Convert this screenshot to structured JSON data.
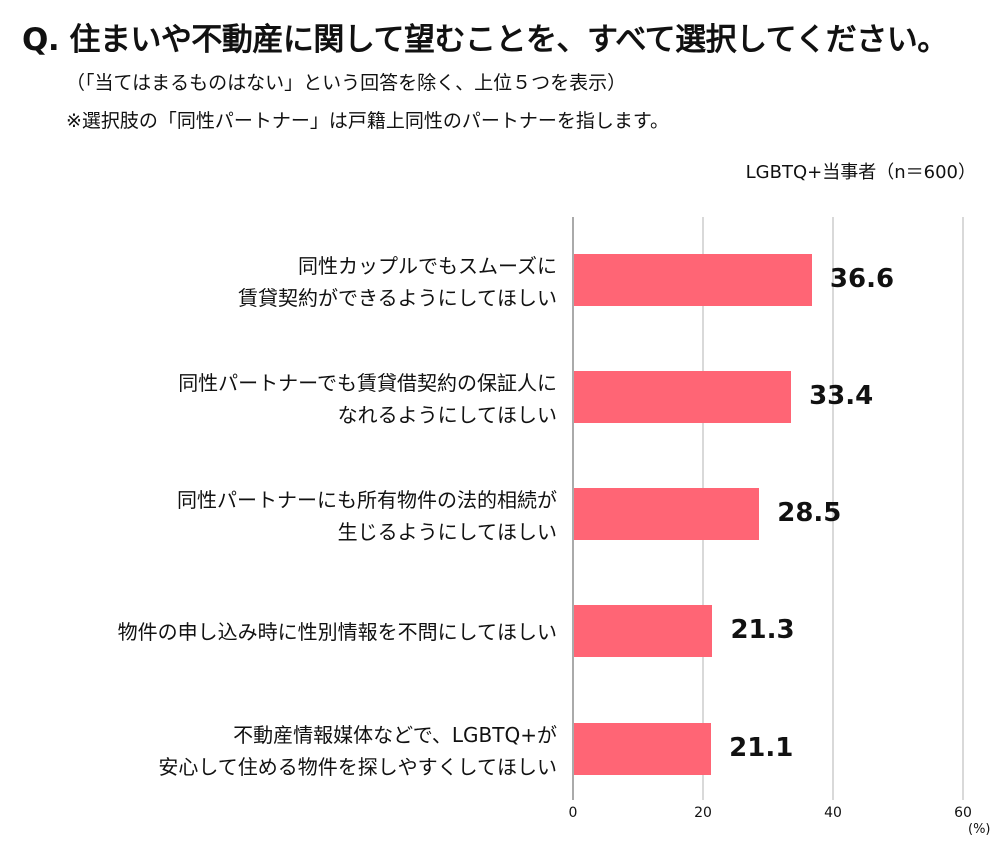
{
  "header": {
    "title": "Q. 住まいや不動産に関して望むことを、すべて選択してください。",
    "note1": "（「当てはまるものはない」という回答を除く、上位５つを表示）",
    "note2": "※選択肢の「同性パートナー」は戸籍上同性のパートナーを指します。",
    "sample": "LGBTQ+当事者（n＝600）"
  },
  "colors": {
    "bar": "#ff6575",
    "grid": "#d9d9d9",
    "axis": "#aaaaaa",
    "text": "#111111"
  },
  "chart_data": {
    "type": "bar",
    "orientation": "horizontal",
    "title": "Q. 住まいや不動産に関して望むことを、すべて選択してください。",
    "subtitle": "LGBTQ+当事者（n＝600）",
    "categories": [
      "同性カップルでもスムーズに賃貸契約ができるようにしてほしい",
      "同性パートナーでも賃貸借契約の保証人になれるようにしてほしい",
      "同性パートナーにも所有物件の法的相続が生じるようにしてほしい",
      "物件の申し込み時に性別情報を不問にしてほしい",
      "不動産情報媒体などで、LGBTQ+が安心して住める物件を探しやすくしてほしい"
    ],
    "values": [
      36.6,
      33.4,
      28.5,
      21.3,
      21.1
    ],
    "xlabel": "(%)",
    "ylabel": "",
    "xlim": [
      0,
      60
    ],
    "ticks": [
      "0",
      "20",
      "40",
      "60"
    ],
    "grid": true,
    "legend": "none"
  },
  "rows": [
    {
      "line1": "同性カップルでもスムーズに",
      "line2": "賃貸契約ができるようにしてほしい",
      "value": "36.6"
    },
    {
      "line1": "同性パートナーでも賃貸借契約の保証人に",
      "line2": "なれるようにしてほしい",
      "value": "33.4"
    },
    {
      "line1": "同性パートナーにも所有物件の法的相続が",
      "line2": "生じるようにしてほしい",
      "value": "28.5"
    },
    {
      "line1": "物件の申し込み時に性別情報を不問にしてほしい",
      "line2": "",
      "value": "21.3"
    },
    {
      "line1": "不動産情報媒体などで、LGBTQ+が",
      "line2": "安心して住める物件を探しやすくしてほしい",
      "value": "21.1"
    }
  ],
  "axis": {
    "ticks": [
      "0",
      "20",
      "40",
      "60"
    ],
    "unit": "(%)"
  }
}
